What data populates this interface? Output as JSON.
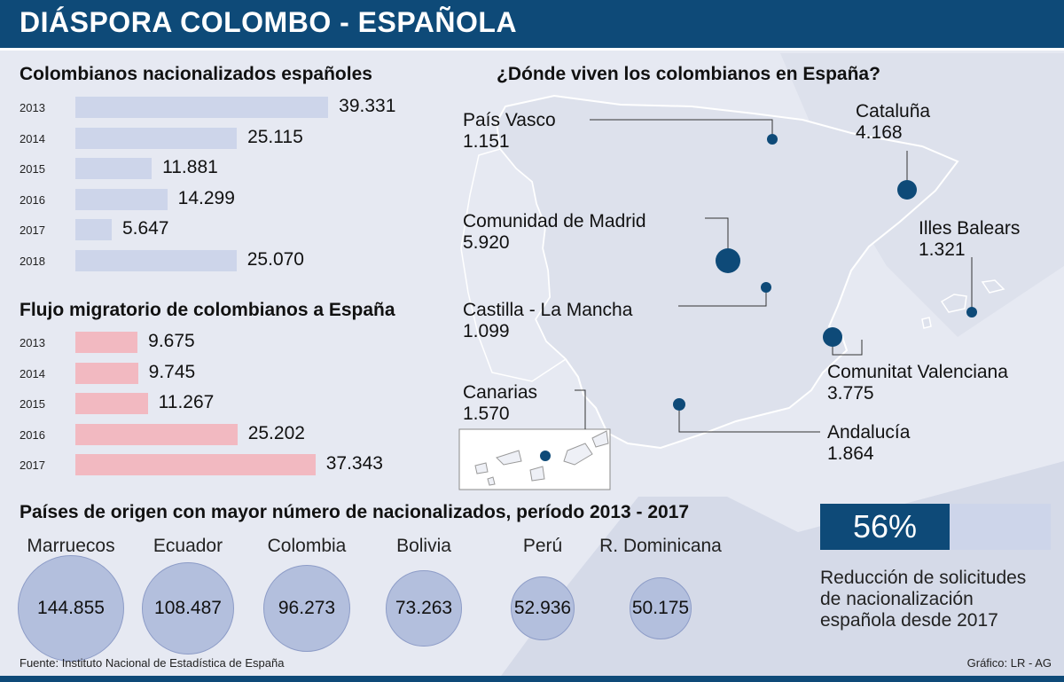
{
  "header": {
    "title": "DIÁSPORA COLOMBO - ESPAÑOLA"
  },
  "colors": {
    "header": "#0e4a78",
    "bar_blue": "#cdd5ea",
    "bar_pink": "#f2b9c1",
    "dot": "#0e4a78",
    "circle": "#b3bfdd"
  },
  "chart_data": [
    {
      "type": "bar",
      "title": "Colombianos nacionalizados españoles",
      "categories": [
        "2013",
        "2014",
        "2015",
        "2016",
        "2017",
        "2018"
      ],
      "values": [
        39331,
        25115,
        11881,
        14299,
        5647,
        25070
      ],
      "labels": [
        "39.331",
        "25.115",
        "11.881",
        "14.299",
        "5.647",
        "25.070"
      ],
      "orientation": "horizontal"
    },
    {
      "type": "bar",
      "title": "Flujo migratorio de colombianos a España",
      "categories": [
        "2013",
        "2014",
        "2015",
        "2016",
        "2017"
      ],
      "values": [
        9675,
        9745,
        11267,
        25202,
        37343
      ],
      "labels": [
        "9.675",
        "9.745",
        "11.267",
        "25.202",
        "37.343"
      ],
      "orientation": "horizontal"
    },
    {
      "type": "scatter",
      "title": "¿Dónde viven los colombianos en España?",
      "points": [
        {
          "name": "País Vasco",
          "value": "1.151"
        },
        {
          "name": "Cataluña",
          "value": "4.168"
        },
        {
          "name": "Comunidad de Madrid",
          "value": "5.920"
        },
        {
          "name": "Illes Balears",
          "value": "1.321"
        },
        {
          "name": "Castilla - La Mancha",
          "value": "1.099"
        },
        {
          "name": "Comunitat Valenciana",
          "value": "3.775"
        },
        {
          "name": "Canarias",
          "value": "1.570"
        },
        {
          "name": "Andalucía",
          "value": "1.864"
        }
      ]
    },
    {
      "type": "bubble",
      "title": "Países de origen con mayor número de nacionalizados, período 2013 - 2017",
      "categories": [
        "Marruecos",
        "Ecuador",
        "Colombia",
        "Bolivia",
        "Perú",
        "R. Dominicana"
      ],
      "values": [
        144855,
        108487,
        96273,
        73263,
        52936,
        50175
      ],
      "labels": [
        "144.855",
        "108.487",
        "96.273",
        "73.263",
        "52.936",
        "50.175"
      ]
    }
  ],
  "highlight": {
    "percent_label": "56%",
    "percent_value": 0.56,
    "description": [
      "Reducción de solicitudes",
      "de nacionalización",
      "española desde 2017"
    ]
  },
  "footer": {
    "source": "Fuente: Instituto Nacional de Estadística de España",
    "credit": "Gráfico: LR - AG"
  }
}
